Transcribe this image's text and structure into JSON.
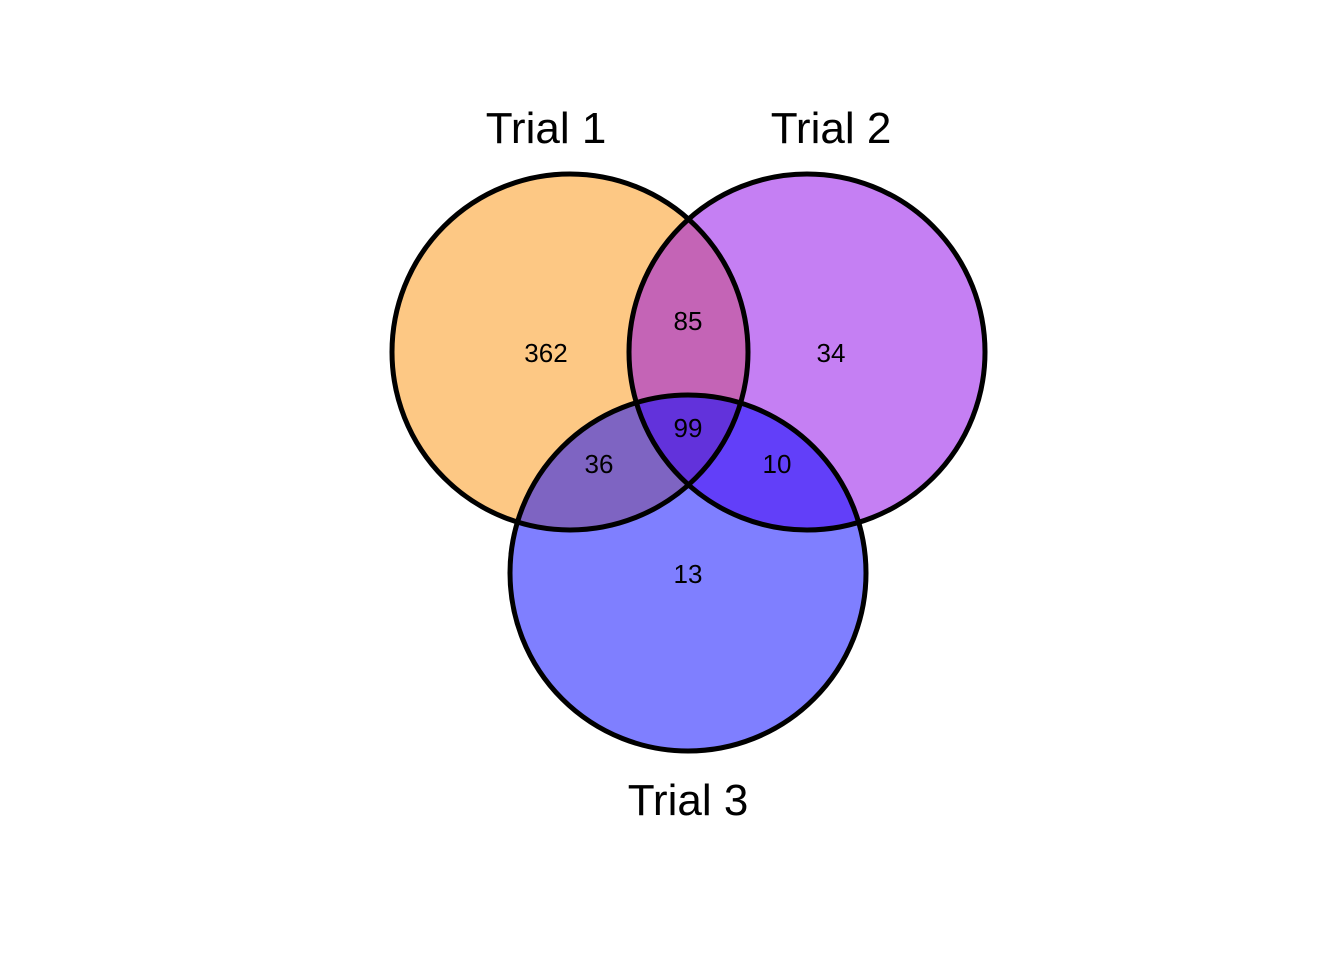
{
  "venn": {
    "sets": [
      {
        "key": "a",
        "label": "Trial 1",
        "fill": "#fc9f26",
        "opacity": 0.57
      },
      {
        "key": "b",
        "label": "Trial 2",
        "fill": "#8b00e8",
        "opacity": 0.5
      },
      {
        "key": "c",
        "label": "Trial 3",
        "fill": "#0000ff",
        "opacity": 0.5
      }
    ],
    "regions": {
      "a_only": "362",
      "b_only": "34",
      "c_only": "13",
      "ab": "85",
      "ac": "36",
      "bc": "10",
      "abc": "99"
    }
  }
}
